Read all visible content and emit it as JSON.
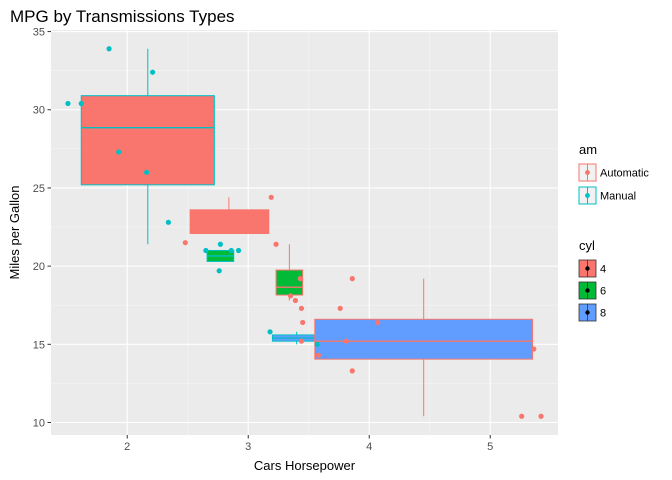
{
  "chart_data": {
    "type": "boxplot",
    "title": "MPG by Transmissions Types",
    "xlabel": "Cars Horsepower",
    "ylabel": "Miles per Gallon",
    "xlim": [
      1.37,
      5.56
    ],
    "ylim": [
      9.2,
      35.1
    ],
    "x_ticks": [
      2,
      3,
      4,
      5
    ],
    "x_tick_labels": [
      "2",
      "3",
      "4",
      "5"
    ],
    "y_ticks": [
      10,
      15,
      20,
      25,
      30,
      35
    ],
    "y_tick_labels": [
      "10",
      "15",
      "20",
      "25",
      "30",
      "35"
    ],
    "grid": true,
    "legend_placement": "right",
    "legends": [
      {
        "title": "am",
        "items": [
          {
            "label": "Automatic",
            "color": "#F8766D"
          },
          {
            "label": "Manual",
            "color": "#00BFC4"
          }
        ]
      },
      {
        "title": "cyl",
        "items": [
          {
            "label": "4",
            "color": "#F8766D"
          },
          {
            "label": "6",
            "color": "#00BA38"
          },
          {
            "label": "8",
            "color": "#619CFF"
          }
        ]
      }
    ],
    "boxes": [
      {
        "cyl": "4",
        "fill": "#F8766D",
        "border": "#00BFC4",
        "x_min": 1.62,
        "x_max": 2.72,
        "whisker_x": 2.17,
        "min": 21.4,
        "q1": 25.2,
        "median": 28.85,
        "q3": 30.9,
        "max": 33.9
      },
      {
        "cyl": "4",
        "fill": "#F8766D",
        "border": "#F8766D",
        "x_min": 2.52,
        "x_max": 3.17,
        "whisker_x": 2.84,
        "min": 22.1,
        "q1": 22.1,
        "median": 22.1,
        "q3": 23.6,
        "max": 24.4
      },
      {
        "cyl": "6",
        "fill": "#00BA38",
        "border": "#00BFC4",
        "x_min": 2.66,
        "x_max": 2.88,
        "whisker_x": 2.77,
        "min": 20.3,
        "q1": 20.3,
        "median": 20.65,
        "q3": 21.0,
        "max": 21.0
      },
      {
        "cyl": "6",
        "fill": "#00BA38",
        "border": "#F8766D",
        "x_min": 3.23,
        "x_max": 3.45,
        "whisker_x": 3.34,
        "min": 17.8,
        "q1": 18.15,
        "median": 18.65,
        "q3": 19.75,
        "max": 21.4
      },
      {
        "cyl": "8",
        "fill": "#619CFF",
        "border": "#00BFC4",
        "x_min": 3.2,
        "x_max": 3.59,
        "whisker_x": 3.4,
        "min": 15.0,
        "q1": 15.2,
        "median": 15.4,
        "q3": 15.6,
        "max": 15.8
      },
      {
        "cyl": "8",
        "fill": "#619CFF",
        "border": "#F8766D",
        "x_min": 3.55,
        "x_max": 5.35,
        "whisker_x": 4.45,
        "min": 10.4,
        "q1": 14.05,
        "median": 15.2,
        "q3": 16.6,
        "max": 19.2
      }
    ],
    "series": [
      {
        "name": "Manual",
        "color": "#00BFC4",
        "points": [
          {
            "x": 1.51,
            "y": 30.4
          },
          {
            "x": 1.62,
            "y": 30.4
          },
          {
            "x": 1.85,
            "y": 33.9
          },
          {
            "x": 1.93,
            "y": 27.3
          },
          {
            "x": 2.16,
            "y": 26.0
          },
          {
            "x": 2.21,
            "y": 32.4
          },
          {
            "x": 2.34,
            "y": 22.8
          },
          {
            "x": 2.65,
            "y": 21.0
          },
          {
            "x": 2.76,
            "y": 19.7
          },
          {
            "x": 2.77,
            "y": 21.4
          },
          {
            "x": 2.86,
            "y": 21.0
          },
          {
            "x": 2.92,
            "y": 21.0
          },
          {
            "x": 3.18,
            "y": 15.8
          },
          {
            "x": 3.57,
            "y": 15.0
          }
        ]
      },
      {
        "name": "Automatic",
        "color": "#F8766D",
        "points": [
          {
            "x": 2.48,
            "y": 21.5
          },
          {
            "x": 3.11,
            "y": 22.8
          },
          {
            "x": 3.19,
            "y": 24.4
          },
          {
            "x": 3.23,
            "y": 21.4
          },
          {
            "x": 3.35,
            "y": 18.1
          },
          {
            "x": 3.39,
            "y": 17.8
          },
          {
            "x": 3.43,
            "y": 19.2
          },
          {
            "x": 3.44,
            "y": 17.3
          },
          {
            "x": 3.45,
            "y": 16.4
          },
          {
            "x": 3.44,
            "y": 15.2
          },
          {
            "x": 3.58,
            "y": 14.3
          },
          {
            "x": 3.76,
            "y": 17.3
          },
          {
            "x": 3.81,
            "y": 15.2
          },
          {
            "x": 3.86,
            "y": 13.3
          },
          {
            "x": 3.86,
            "y": 19.2
          },
          {
            "x": 4.07,
            "y": 16.4
          },
          {
            "x": 5.26,
            "y": 10.4
          },
          {
            "x": 5.36,
            "y": 14.7
          },
          {
            "x": 5.42,
            "y": 10.4
          }
        ]
      }
    ]
  }
}
